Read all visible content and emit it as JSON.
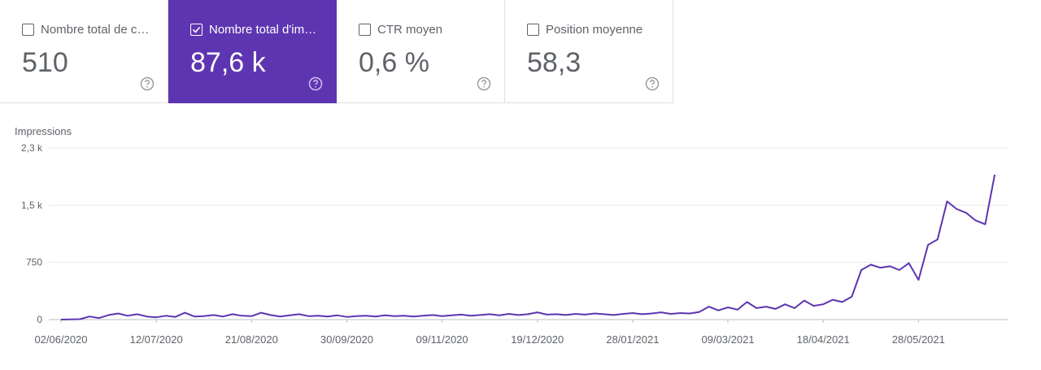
{
  "cards": [
    {
      "title": "Nombre total de c…",
      "value": "510",
      "checked": false
    },
    {
      "title": "Nombre total d'im…",
      "value": "87,6 k",
      "checked": true
    },
    {
      "title": "CTR moyen",
      "value": "0,6 %",
      "checked": false
    },
    {
      "title": "Position moyenne",
      "value": "58,3",
      "checked": false
    }
  ],
  "chart_data": {
    "type": "line",
    "ylabel": "Impressions",
    "color": "#5e35b1",
    "grid": true,
    "ylim": [
      0,
      2250
    ],
    "yticks": [
      0,
      750,
      {
        "value": 1500,
        "label": "1,5 k"
      },
      {
        "value": 2250,
        "label": "2,3 k"
      }
    ],
    "xlim": [
      "02/06/2020",
      "30/06/2021"
    ],
    "xticks": [
      "02/06/2020",
      "12/07/2020",
      "21/08/2020",
      "30/09/2020",
      "09/11/2020",
      "19/12/2020",
      "28/01/2021",
      "09/03/2021",
      "18/04/2021",
      "28/05/2021"
    ],
    "x": [
      "02/06/2020",
      "06/06/2020",
      "10/06/2020",
      "14/06/2020",
      "18/06/2020",
      "22/06/2020",
      "26/06/2020",
      "30/06/2020",
      "04/07/2020",
      "08/07/2020",
      "12/07/2020",
      "16/07/2020",
      "20/07/2020",
      "24/07/2020",
      "28/07/2020",
      "01/08/2020",
      "05/08/2020",
      "09/08/2020",
      "13/08/2020",
      "17/08/2020",
      "21/08/2020",
      "25/08/2020",
      "29/08/2020",
      "02/09/2020",
      "06/09/2020",
      "10/09/2020",
      "14/09/2020",
      "18/09/2020",
      "22/09/2020",
      "26/09/2020",
      "30/09/2020",
      "04/10/2020",
      "08/10/2020",
      "12/10/2020",
      "16/10/2020",
      "20/10/2020",
      "24/10/2020",
      "28/10/2020",
      "01/11/2020",
      "05/11/2020",
      "09/11/2020",
      "13/11/2020",
      "17/11/2020",
      "21/11/2020",
      "25/11/2020",
      "29/11/2020",
      "03/12/2020",
      "07/12/2020",
      "11/12/2020",
      "15/12/2020",
      "19/12/2020",
      "23/12/2020",
      "27/12/2020",
      "31/12/2020",
      "04/01/2021",
      "08/01/2021",
      "12/01/2021",
      "16/01/2021",
      "20/01/2021",
      "24/01/2021",
      "28/01/2021",
      "01/02/2021",
      "05/02/2021",
      "09/02/2021",
      "13/02/2021",
      "17/02/2021",
      "21/02/2021",
      "25/02/2021",
      "01/03/2021",
      "05/03/2021",
      "09/03/2021",
      "13/03/2021",
      "17/03/2021",
      "21/03/2021",
      "25/03/2021",
      "29/03/2021",
      "02/04/2021",
      "06/04/2021",
      "10/04/2021",
      "14/04/2021",
      "18/04/2021",
      "22/04/2021",
      "26/04/2021",
      "30/04/2021",
      "04/05/2021",
      "08/05/2021",
      "12/05/2021",
      "16/05/2021",
      "20/05/2021",
      "24/05/2021",
      "28/05/2021",
      "01/06/2021",
      "05/06/2021",
      "09/06/2021",
      "13/06/2021",
      "17/06/2021",
      "21/06/2021",
      "25/06/2021",
      "29/06/2021"
    ],
    "values": [
      0,
      2,
      5,
      40,
      20,
      60,
      80,
      50,
      70,
      40,
      30,
      50,
      35,
      90,
      40,
      45,
      60,
      40,
      70,
      50,
      45,
      90,
      60,
      40,
      55,
      70,
      45,
      50,
      40,
      55,
      35,
      45,
      50,
      40,
      55,
      45,
      50,
      40,
      50,
      60,
      45,
      55,
      65,
      50,
      60,
      70,
      55,
      75,
      60,
      70,
      95,
      65,
      70,
      60,
      75,
      65,
      80,
      70,
      60,
      75,
      85,
      70,
      80,
      95,
      75,
      85,
      80,
      100,
      170,
      120,
      160,
      130,
      230,
      150,
      170,
      140,
      200,
      150,
      250,
      180,
      200,
      260,
      230,
      300,
      650,
      720,
      680,
      700,
      650,
      740,
      520,
      980,
      1050,
      1550,
      1450,
      1400,
      1300,
      1250,
      1900
    ]
  }
}
